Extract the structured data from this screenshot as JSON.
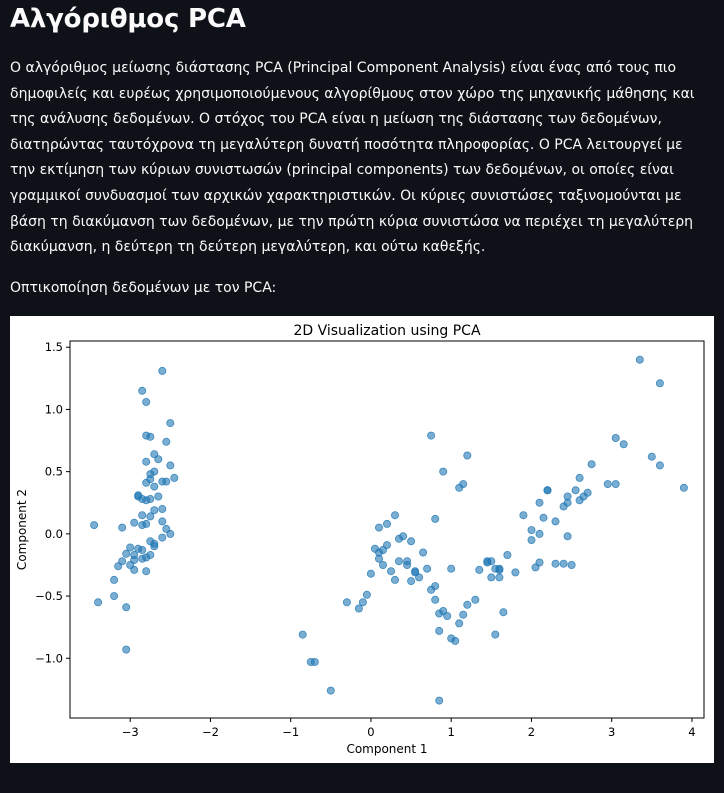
{
  "page": {
    "title": "Αλγόριθμος PCA",
    "intro": "Ο αλγόριθμος μείωσης διάστασης PCA (Principal Component Analysis) είναι ένας από τους πιο δημοφιλείς και ευρέως χρησιμοποιούμενους αλγορίθμους στον χώρο της μηχανικής μάθησης και της ανάλυσης δεδομένων. Ο στόχος του PCA είναι η μείωση της διάστασης των δεδομένων, διατηρώντας ταυτόχρονα τη μεγαλύτερη δυνατή ποσότητα πληροφορίας. Ο PCA λειτουργεί με την εκτίμηση των κύριων συνιστωσών (principal components) των δεδομένων, οι οποίες είναι γραμμικοί συνδυασμοί των αρχικών χαρακτηριστικών. Οι κύριες συνιστώσες ταξινομούνται με βάση τη διακύμανση των δεδομένων, με την πρώτη κύρια συνιστώσα να περιέχει τη μεγαλύτερη διακύμανση, η δεύτερη τη δεύτερη μεγαλύτερη, και ούτω καθεξής.",
    "caption": "Οπτικοποίηση δεδομένων με τον PCA:"
  },
  "chart_data": {
    "type": "scatter",
    "title": "2D Visualization using PCA",
    "xlabel": "Component 1",
    "ylabel": "Component 2",
    "xlim": [
      -3.75,
      4.15
    ],
    "ylim": [
      -1.48,
      1.55
    ],
    "xticks": [
      -3,
      -2,
      -1,
      0,
      1,
      2,
      3,
      4
    ],
    "yticks": [
      -1.0,
      -0.5,
      0.0,
      0.5,
      1.0,
      1.5
    ],
    "xtick_labels": [
      "−3",
      "−2",
      "−1",
      "0",
      "1",
      "2",
      "3",
      "4"
    ],
    "ytick_labels": [
      "−1.0",
      "−0.5",
      "0.0",
      "0.5",
      "1.0",
      "1.5"
    ],
    "grid": false,
    "marker_color": "#1f77b4",
    "x": [
      -2.6,
      -2.85,
      -2.8,
      -2.5,
      -2.55,
      -2.45,
      -2.5,
      -2.75,
      -2.8,
      -2.7,
      -2.65,
      -2.7,
      -2.75,
      -2.6,
      -2.8,
      -2.55,
      -2.65,
      -2.75,
      -2.9,
      -2.8,
      -2.85,
      -2.6,
      -2.7,
      -2.75,
      -2.95,
      -2.8,
      -2.85,
      -2.55,
      -2.6,
      -2.7,
      -3.0,
      -2.9,
      -3.05,
      -2.8,
      -2.95,
      -2.85,
      -2.75,
      -3.1,
      -3.0,
      -3.15,
      -2.95,
      -2.8,
      -3.2,
      -3.4,
      -3.05,
      -3.2,
      -3.45,
      -3.1,
      -3.05,
      -2.5,
      -2.75,
      -2.9,
      -2.8,
      -2.7,
      -2.85,
      -2.95,
      -2.75,
      -2.6,
      -2.7,
      -2.85,
      3.35,
      3.6,
      3.05,
      3.15,
      3.5,
      3.6,
      2.75,
      3.9,
      2.95,
      3.05,
      2.6,
      2.55,
      2.65,
      2.45,
      2.4,
      2.2,
      2.1,
      2.45,
      2.15,
      2.6,
      2.7,
      2.3,
      2.0,
      1.9,
      2.1,
      2.2,
      2.45,
      2.3,
      2.4,
      2.1,
      2.05,
      2.0,
      2.5,
      1.8,
      1.7,
      1.6,
      1.5,
      1.6,
      1.65,
      1.55,
      1.45,
      1.35,
      1.3,
      1.2,
      1.1,
      1.0,
      1.05,
      0.95,
      0.85,
      0.75,
      0.6,
      0.8,
      0.55,
      0.5,
      0.45,
      0.65,
      0.7,
      0.8,
      0.75,
      0.9,
      1.1,
      1.2,
      1.15,
      0.35,
      0.4,
      0.3,
      0.2,
      0.15,
      0.1,
      0.2,
      0.1,
      0.05,
      0.0,
      -0.1,
      -0.05,
      -0.15,
      -0.3,
      0.3,
      0.25,
      0.15,
      0.1,
      0.45,
      0.55,
      1.45,
      1.55,
      1.5,
      1.6,
      0.35,
      0.5,
      0.8,
      0.9,
      0.85,
      1.0,
      1.15,
      -0.85,
      -0.7,
      -0.5,
      -0.75,
      0.85
    ],
    "y": [
      1.31,
      1.15,
      1.06,
      0.89,
      0.74,
      0.45,
      0.55,
      0.78,
      0.79,
      0.64,
      0.6,
      0.5,
      0.44,
      0.42,
      0.41,
      0.42,
      0.3,
      0.28,
      0.31,
      0.27,
      0.28,
      0.2,
      0.19,
      0.14,
      0.09,
      0.08,
      0.07,
      0.04,
      -0.03,
      -0.08,
      -0.11,
      -0.12,
      -0.16,
      -0.19,
      -0.21,
      -0.2,
      -0.17,
      -0.22,
      -0.25,
      -0.26,
      -0.29,
      -0.3,
      -0.37,
      -0.55,
      -0.59,
      -0.5,
      0.07,
      0.05,
      -0.93,
      0.0,
      0.48,
      0.3,
      0.58,
      0.38,
      -0.13,
      -0.17,
      -0.06,
      0.1,
      -0.1,
      0.15,
      1.4,
      1.21,
      0.77,
      0.72,
      0.62,
      0.55,
      0.56,
      0.37,
      0.4,
      0.4,
      0.45,
      0.35,
      0.3,
      0.3,
      0.22,
      0.35,
      0.25,
      0.25,
      0.13,
      0.27,
      0.33,
      0.1,
      0.03,
      0.15,
      0.0,
      0.35,
      -0.02,
      -0.24,
      -0.24,
      -0.23,
      -0.27,
      -0.05,
      -0.25,
      -0.31,
      -0.17,
      -0.35,
      -0.22,
      -0.29,
      -0.63,
      -0.81,
      -0.23,
      -0.29,
      -0.53,
      -0.57,
      -0.72,
      -0.84,
      -0.86,
      -0.66,
      -0.64,
      -0.45,
      -0.35,
      -0.53,
      -0.31,
      -0.38,
      -0.22,
      -0.15,
      -0.28,
      0.12,
      0.79,
      0.5,
      0.37,
      0.63,
      0.4,
      -0.04,
      -0.02,
      0.15,
      0.08,
      -0.13,
      -0.15,
      -0.09,
      0.05,
      -0.12,
      -0.32,
      -0.55,
      -0.49,
      -0.6,
      -0.55,
      -0.37,
      -0.3,
      -0.25,
      -0.2,
      -0.25,
      -0.3,
      -0.22,
      -0.28,
      -0.35,
      -0.28,
      -0.22,
      -0.06,
      -0.42,
      -0.62,
      -0.78,
      -0.28,
      -0.65,
      -0.81,
      -1.03,
      -1.26,
      -1.03,
      -1.34
    ]
  }
}
